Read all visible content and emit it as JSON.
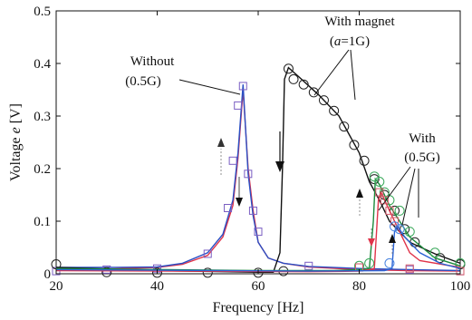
{
  "chart_data": {
    "type": "line",
    "xlabel": "Frequency [Hz]",
    "ylabel_main": "Voltage ",
    "ylabel_var": "e",
    "ylabel_unit": " [V]",
    "xlim": [
      20,
      100
    ],
    "ylim": [
      0,
      0.5
    ],
    "xticks": [
      20,
      40,
      60,
      80,
      100
    ],
    "yticks": [
      0,
      0.1,
      0.2,
      0.3,
      0.4,
      0.5
    ],
    "xtick_labels": [
      "20",
      "40",
      "60",
      "80",
      "100"
    ],
    "ytick_labels": [
      "0",
      "0.1",
      "0.2",
      "0.3",
      "0.4",
      "0.5"
    ],
    "grid": false,
    "annotations": {
      "without_line1": "Without",
      "without_line2": "(0.5G)",
      "magnet_line1": "With magnet",
      "magnet_line2_open": "(",
      "magnet_line2_var": "a",
      "magnet_line2_rest": "=1G)",
      "with_line1": "With",
      "with_line2": "(0.5G)"
    },
    "series": [
      {
        "key": "without-red",
        "color": "#e0344a",
        "line": [
          [
            20,
            0.008
          ],
          [
            30,
            0.009
          ],
          [
            40,
            0.012
          ],
          [
            45,
            0.018
          ],
          [
            50,
            0.035
          ],
          [
            53,
            0.07
          ],
          [
            55,
            0.13
          ],
          [
            56,
            0.22
          ],
          [
            57,
            0.35
          ],
          [
            58,
            0.2
          ],
          [
            59,
            0.12
          ],
          [
            60,
            0.06
          ],
          [
            62,
            0.03
          ],
          [
            65,
            0.02
          ],
          [
            70,
            0.013
          ],
          [
            80,
            0.008
          ],
          [
            90,
            0.006
          ],
          [
            100,
            0.005
          ]
        ],
        "markers": []
      },
      {
        "key": "without-blue",
        "color": "#2a4fc4",
        "line": [
          [
            20,
            0.012
          ],
          [
            30,
            0.012
          ],
          [
            40,
            0.013
          ],
          [
            45,
            0.02
          ],
          [
            50,
            0.04
          ],
          [
            53,
            0.075
          ],
          [
            55,
            0.14
          ],
          [
            56,
            0.23
          ],
          [
            57,
            0.36
          ],
          [
            58,
            0.19
          ],
          [
            59,
            0.11
          ],
          [
            60,
            0.06
          ],
          [
            62,
            0.03
          ],
          [
            65,
            0.02
          ],
          [
            70,
            0.014
          ],
          [
            80,
            0.01
          ],
          [
            90,
            0.008
          ],
          [
            100,
            0.006
          ]
        ],
        "markers": []
      },
      {
        "key": "without-squares",
        "color": "#7a5ec2",
        "marker": "square",
        "line": [],
        "markers": [
          [
            20,
            0.005
          ],
          [
            30,
            0.008
          ],
          [
            40,
            0.01
          ],
          [
            50,
            0.038
          ],
          [
            54,
            0.125
          ],
          [
            55,
            0.215
          ],
          [
            56,
            0.32
          ],
          [
            57,
            0.357
          ],
          [
            58,
            0.19
          ],
          [
            59,
            0.12
          ],
          [
            60,
            0.08
          ],
          [
            70,
            0.015
          ],
          [
            80,
            0.012
          ],
          [
            90,
            0.008
          ],
          [
            100,
            0.005
          ]
        ]
      },
      {
        "key": "magnet-black",
        "color": "#111111",
        "line": [
          [
            20,
            0.012
          ],
          [
            40,
            0.006
          ],
          [
            60,
            0.003
          ],
          [
            63,
            0.003
          ],
          [
            64.3,
            0.04
          ],
          [
            64.8,
            0.2
          ],
          [
            65.2,
            0.37
          ],
          [
            66,
            0.392
          ],
          [
            68,
            0.375
          ],
          [
            72,
            0.34
          ],
          [
            76,
            0.3
          ],
          [
            80,
            0.23
          ],
          [
            82,
            0.175
          ],
          [
            84,
            0.14
          ],
          [
            86,
            0.1
          ],
          [
            88,
            0.08
          ],
          [
            90,
            0.06
          ],
          [
            95,
            0.038
          ],
          [
            100,
            0.02
          ]
        ],
        "markers": []
      },
      {
        "key": "magnet-circles",
        "color": "#222222",
        "marker": "circle",
        "line": [],
        "markers": [
          [
            20,
            0.018
          ],
          [
            30,
            0.003
          ],
          [
            40,
            0.002
          ],
          [
            50,
            0.002
          ],
          [
            60,
            0.002
          ],
          [
            65,
            0.005
          ],
          [
            66,
            0.39
          ],
          [
            67,
            0.37
          ],
          [
            69,
            0.36
          ],
          [
            71,
            0.345
          ],
          [
            73,
            0.33
          ],
          [
            75,
            0.31
          ],
          [
            77,
            0.28
          ],
          [
            79,
            0.245
          ],
          [
            81,
            0.215
          ],
          [
            83,
            0.18
          ],
          [
            85,
            0.15
          ],
          [
            87,
            0.12
          ],
          [
            89,
            0.085
          ],
          [
            91,
            0.06
          ],
          [
            96,
            0.03
          ],
          [
            100,
            0.018
          ]
        ]
      },
      {
        "key": "with-green",
        "color": "#1c8a3c",
        "line": [
          [
            20,
            0.01
          ],
          [
            60,
            0.006
          ],
          [
            75,
            0.006
          ],
          [
            80,
            0.008
          ],
          [
            82,
            0.01
          ],
          [
            82.8,
            0.1
          ],
          [
            83.2,
            0.18
          ],
          [
            84,
            0.17
          ],
          [
            86,
            0.13
          ],
          [
            88,
            0.1
          ],
          [
            90,
            0.07
          ],
          [
            95,
            0.03
          ],
          [
            100,
            0.015
          ]
        ],
        "markers": []
      },
      {
        "key": "with-green-circles",
        "color": "#3aa85a",
        "marker": "circle",
        "line": [],
        "markers": [
          [
            80,
            0.015
          ],
          [
            82,
            0.02
          ],
          [
            83,
            0.185
          ],
          [
            84,
            0.175
          ],
          [
            85,
            0.155
          ],
          [
            86,
            0.14
          ],
          [
            88,
            0.12
          ],
          [
            90,
            0.08
          ],
          [
            95,
            0.04
          ],
          [
            100,
            0.02
          ]
        ]
      },
      {
        "key": "with-red",
        "color": "#e0344a",
        "line": [
          [
            20,
            0.006
          ],
          [
            70,
            0.004
          ],
          [
            80,
            0.005
          ],
          [
            82,
            0.008
          ],
          [
            83,
            0.01
          ],
          [
            83.8,
            0.14
          ],
          [
            84.3,
            0.155
          ],
          [
            86,
            0.12
          ],
          [
            88,
            0.08
          ],
          [
            90,
            0.04
          ],
          [
            92,
            0.025
          ],
          [
            100,
            0.012
          ]
        ],
        "markers": []
      },
      {
        "key": "with-red-squares",
        "color": "#d45a6a",
        "marker": "square",
        "line": [],
        "markers": [
          [
            80,
            0.012
          ],
          [
            84,
            0.155
          ],
          [
            85,
            0.14
          ],
          [
            86,
            0.12
          ],
          [
            87,
            0.1
          ],
          [
            90,
            0.01
          ],
          [
            100,
            0.005
          ]
        ]
      },
      {
        "key": "with-blue",
        "color": "#2a62d4",
        "line": [
          [
            20,
            0.008
          ],
          [
            70,
            0.005
          ],
          [
            85,
            0.006
          ],
          [
            86.5,
            0.01
          ],
          [
            87,
            0.08
          ],
          [
            87.6,
            0.09
          ],
          [
            89,
            0.07
          ],
          [
            92,
            0.04
          ],
          [
            96,
            0.02
          ],
          [
            100,
            0.01
          ]
        ],
        "markers": []
      },
      {
        "key": "with-blue-circles",
        "color": "#4a84e0",
        "marker": "circle",
        "line": [],
        "markers": [
          [
            86,
            0.02
          ],
          [
            87,
            0.09
          ],
          [
            88,
            0.085
          ]
        ]
      }
    ]
  }
}
